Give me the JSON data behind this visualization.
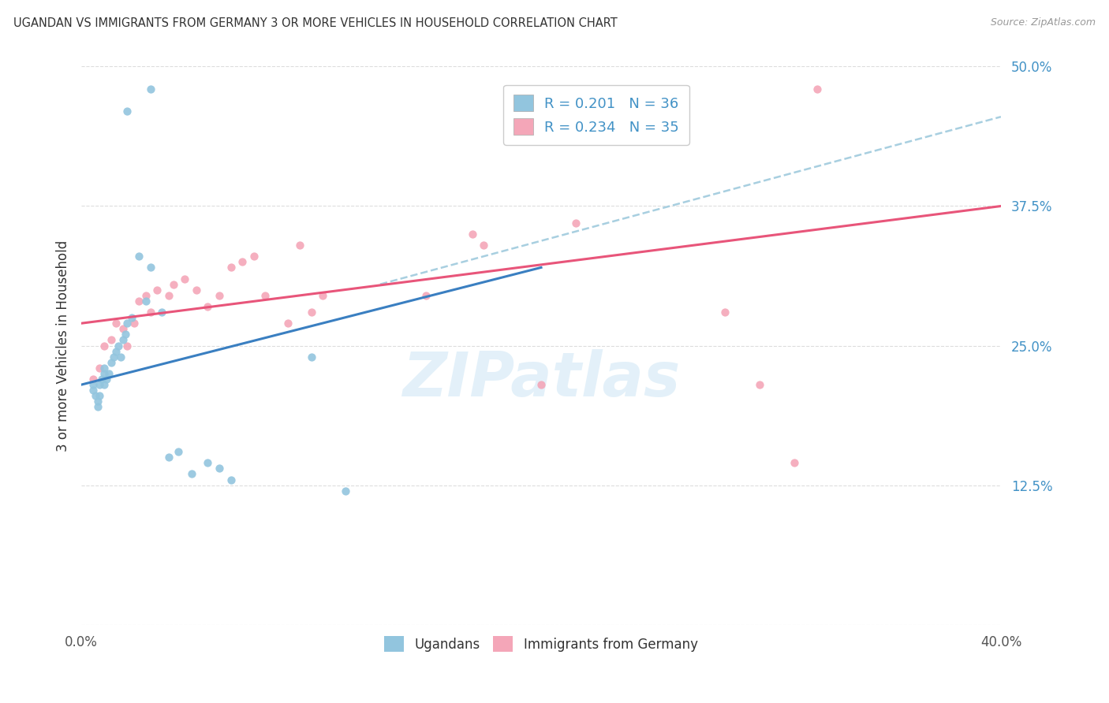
{
  "title": "UGANDAN VS IMMIGRANTS FROM GERMANY 3 OR MORE VEHICLES IN HOUSEHOLD CORRELATION CHART",
  "source": "Source: ZipAtlas.com",
  "ylabel": "3 or more Vehicles in Household",
  "xlim": [
    0.0,
    0.4
  ],
  "ylim": [
    0.0,
    0.5
  ],
  "xticks": [
    0.0,
    0.1,
    0.2,
    0.3,
    0.4
  ],
  "xticklabels": [
    "0.0%",
    "",
    "",
    "",
    "40.0%"
  ],
  "yticks": [
    0.0,
    0.125,
    0.25,
    0.375,
    0.5
  ],
  "yticklabels": [
    "",
    "12.5%",
    "25.0%",
    "37.5%",
    "50.0%"
  ],
  "legend_label1": "R = 0.201   N = 36",
  "legend_label2": "R = 0.234   N = 35",
  "legend_label_bottom1": "Ugandans",
  "legend_label_bottom2": "Immigrants from Germany",
  "color_blue": "#92c5de",
  "color_pink": "#f4a6b8",
  "color_blue_line": "#3a7fc1",
  "color_pink_line": "#e8557a",
  "color_dashed_line": "#a8cfe0",
  "ugandan_x": [
    0.005,
    0.005,
    0.006,
    0.007,
    0.007,
    0.008,
    0.008,
    0.009,
    0.01,
    0.01,
    0.01,
    0.011,
    0.012,
    0.013,
    0.014,
    0.015,
    0.016,
    0.017,
    0.018,
    0.019,
    0.02,
    0.022,
    0.025,
    0.028,
    0.03,
    0.035,
    0.038,
    0.042,
    0.048,
    0.055,
    0.06,
    0.065,
    0.1,
    0.115,
    0.03,
    0.02
  ],
  "ugandan_y": [
    0.215,
    0.21,
    0.205,
    0.195,
    0.2,
    0.205,
    0.215,
    0.22,
    0.225,
    0.215,
    0.23,
    0.22,
    0.225,
    0.235,
    0.24,
    0.245,
    0.25,
    0.24,
    0.255,
    0.26,
    0.27,
    0.275,
    0.33,
    0.29,
    0.32,
    0.28,
    0.15,
    0.155,
    0.135,
    0.145,
    0.14,
    0.13,
    0.24,
    0.12,
    0.48,
    0.46
  ],
  "german_x": [
    0.005,
    0.008,
    0.01,
    0.013,
    0.015,
    0.018,
    0.02,
    0.023,
    0.025,
    0.028,
    0.03,
    0.033,
    0.038,
    0.04,
    0.045,
    0.05,
    0.055,
    0.06,
    0.065,
    0.07,
    0.075,
    0.08,
    0.09,
    0.095,
    0.1,
    0.105,
    0.15,
    0.17,
    0.175,
    0.2,
    0.215,
    0.28,
    0.295,
    0.31,
    0.32
  ],
  "german_y": [
    0.22,
    0.23,
    0.25,
    0.255,
    0.27,
    0.265,
    0.25,
    0.27,
    0.29,
    0.295,
    0.28,
    0.3,
    0.295,
    0.305,
    0.31,
    0.3,
    0.285,
    0.295,
    0.32,
    0.325,
    0.33,
    0.295,
    0.27,
    0.34,
    0.28,
    0.295,
    0.295,
    0.35,
    0.34,
    0.215,
    0.36,
    0.28,
    0.215,
    0.145,
    0.48
  ],
  "blue_line_x": [
    0.0,
    0.2
  ],
  "blue_line_y": [
    0.215,
    0.32
  ],
  "pink_line_x": [
    0.0,
    0.4
  ],
  "pink_line_y": [
    0.27,
    0.375
  ],
  "dashed_line_x": [
    0.13,
    0.4
  ],
  "dashed_line_y": [
    0.305,
    0.455
  ],
  "watermark_text": "ZIPatlas",
  "background_color": "#ffffff",
  "grid_color": "#dddddd"
}
